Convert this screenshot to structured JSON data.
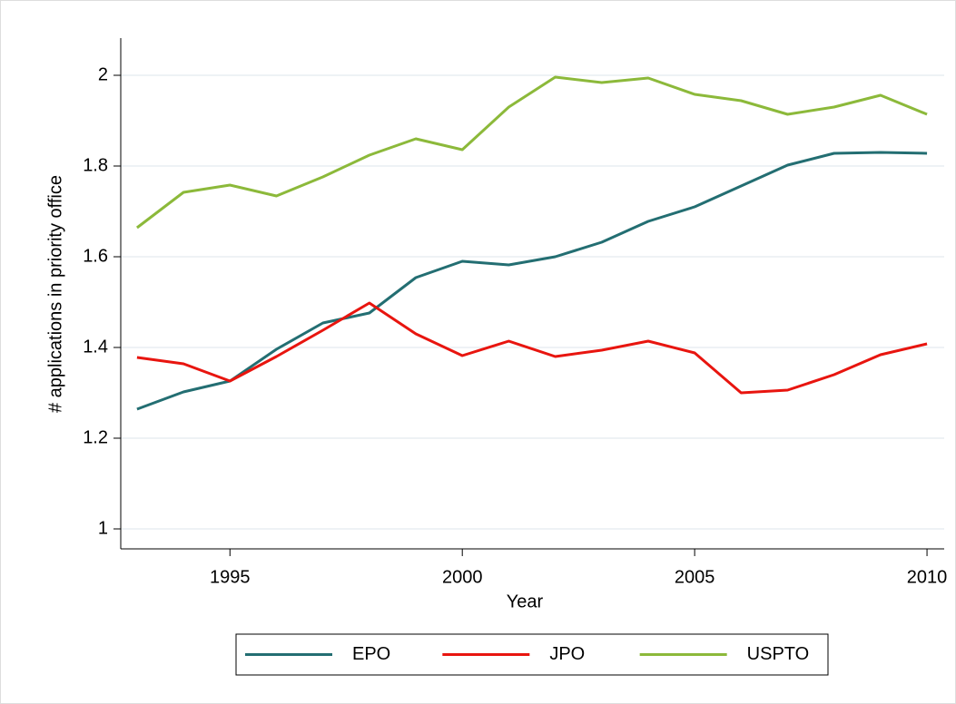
{
  "chart_data": {
    "type": "line",
    "x_label": "Year",
    "y_label": "# applications in priority office",
    "x": [
      1993,
      1994,
      1995,
      1996,
      1997,
      1998,
      1999,
      2000,
      2001,
      2002,
      2003,
      2004,
      2005,
      2006,
      2007,
      2008,
      2009,
      2010
    ],
    "series": [
      {
        "name": "EPO",
        "color": "#236e72",
        "values": [
          1.264,
          1.302,
          1.326,
          1.396,
          1.454,
          1.476,
          1.554,
          1.59,
          1.582,
          1.6,
          1.632,
          1.678,
          1.71,
          1.756,
          1.802,
          1.828,
          1.83,
          1.828
        ]
      },
      {
        "name": "JPO",
        "color": "#e8150f",
        "values": [
          1.378,
          1.364,
          1.326,
          1.38,
          1.438,
          1.498,
          1.43,
          1.382,
          1.414,
          1.38,
          1.394,
          1.414,
          1.388,
          1.3,
          1.306,
          1.34,
          1.384,
          1.408
        ]
      },
      {
        "name": "USPTO",
        "color": "#8cb93a",
        "values": [
          1.664,
          1.742,
          1.758,
          1.734,
          1.776,
          1.824,
          1.86,
          1.836,
          1.93,
          1.996,
          1.984,
          1.994,
          1.958,
          1.944,
          1.914,
          1.93,
          1.956,
          1.914
        ]
      }
    ],
    "xlim": [
      1992.65,
      2010.37
    ],
    "xticks": [
      1995,
      2000,
      2005,
      2010
    ],
    "ylim": [
      0.956,
      2.082
    ],
    "yticks": [
      1,
      1.2,
      1.4,
      1.6,
      1.8,
      2
    ],
    "grid": true,
    "legend": "bottom"
  }
}
